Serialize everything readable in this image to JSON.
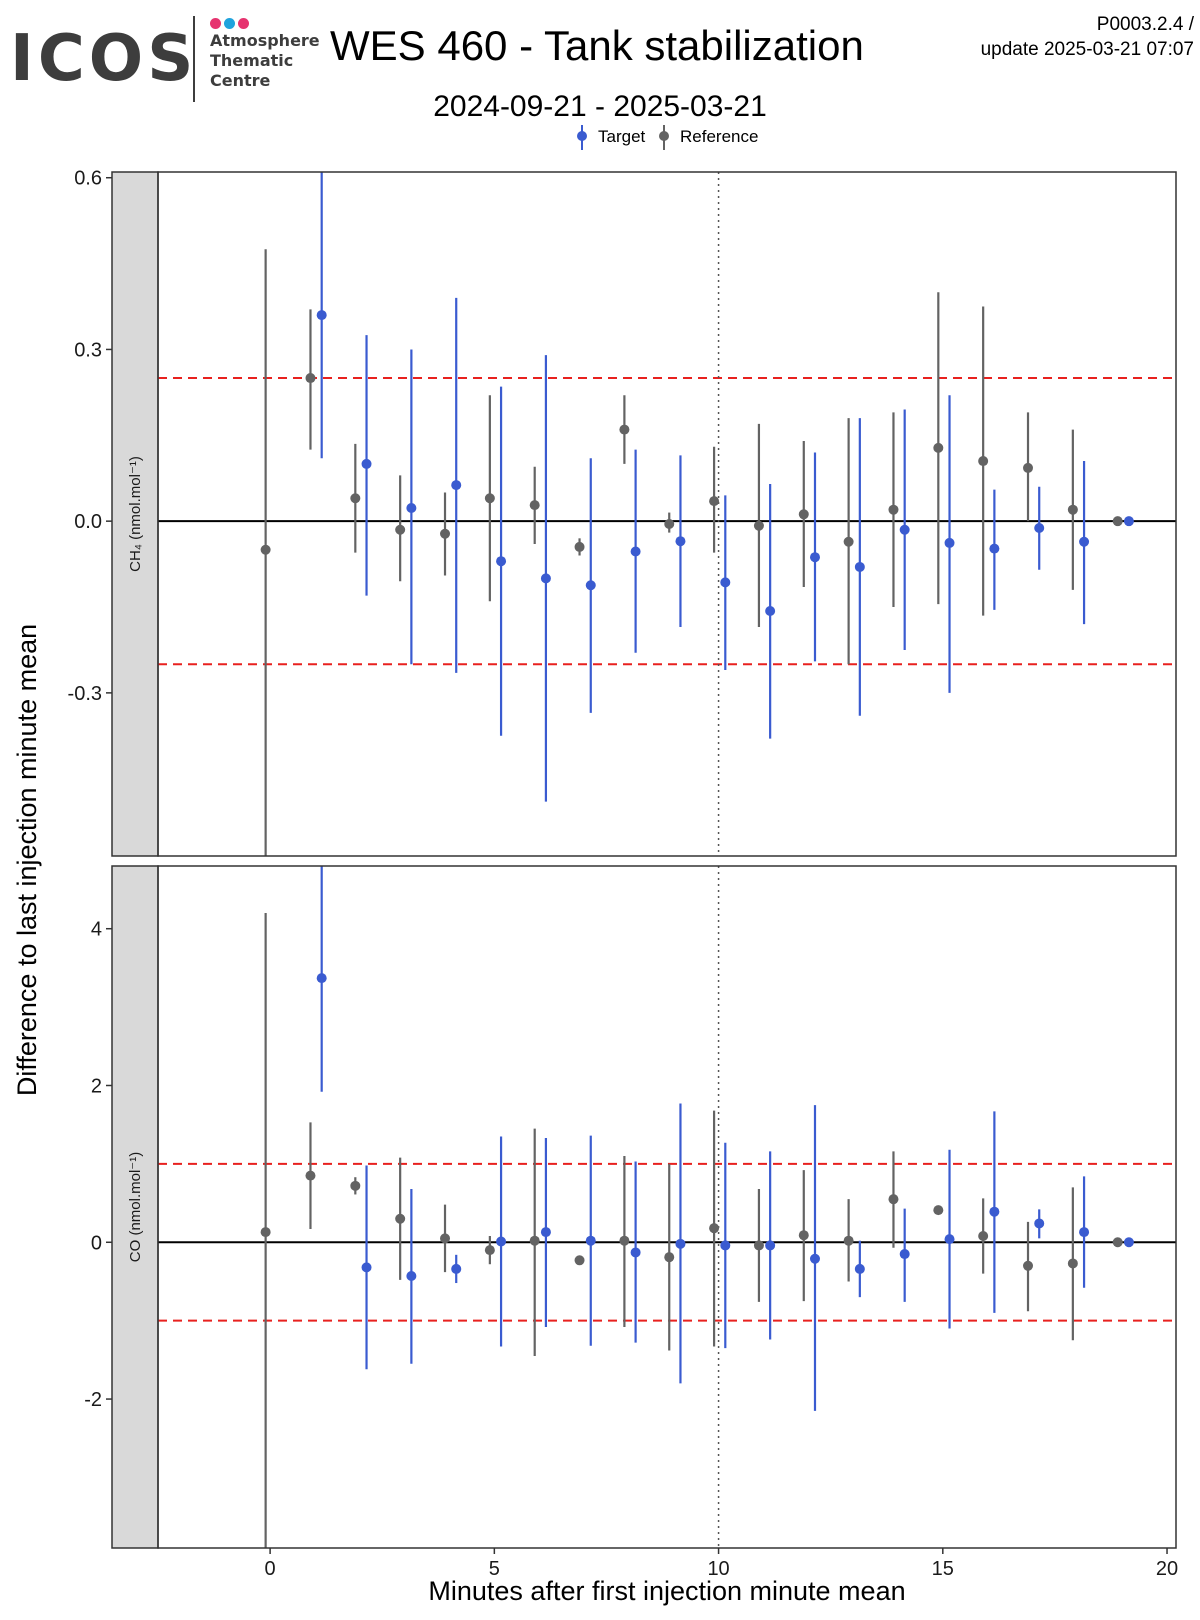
{
  "header": {
    "logo_name": "ICOS",
    "logo_subtitle": "Atmosphere\nThematic\nCentre",
    "logo_dot_colors": [
      "#e6336f",
      "#1fa3dd",
      "#e6336f"
    ],
    "title": "WES 460 - Tank stabilization",
    "date_range": "2024-09-21 - 2025-03-21",
    "code_line1": "P0003.2.4 /",
    "code_line2": "update  2025-03-21 07:07"
  },
  "colors": {
    "target": "#3a5bd0",
    "reference": "#636363",
    "limit_line": "#e8211f",
    "strip_bg": "#d9d9d9"
  },
  "chart_data": {
    "type": "scatter",
    "xlabel": "Minutes after first injection minute mean",
    "ylabel": "Difference to last injection minute mean",
    "xlim": [
      -2.5,
      20.2
    ],
    "x_ticks": [
      0,
      5,
      10,
      15,
      20
    ],
    "vline_x": 10,
    "legend": {
      "position": "top",
      "entries": [
        "Target",
        "Reference"
      ]
    },
    "panels": [
      {
        "strip_label": "CH₄ (nmol.mol⁻¹)",
        "ylim": [
          -0.585,
          0.61
        ],
        "y_ticks": [
          0.6,
          0.3,
          0.0,
          -0.3
        ],
        "y_tick_labels": [
          "0.6",
          "0.3",
          "0.0",
          "-0.3"
        ],
        "limit": 0.25,
        "series": [
          {
            "name": "Reference",
            "points": [
              {
                "x": -0.1,
                "y": -0.05,
                "lo": -0.585,
                "hi": 0.475
              },
              {
                "x": 0.9,
                "y": 0.25,
                "lo": 0.125,
                "hi": 0.37
              },
              {
                "x": 1.9,
                "y": 0.04,
                "lo": -0.055,
                "hi": 0.135
              },
              {
                "x": 2.9,
                "y": -0.015,
                "lo": -0.105,
                "hi": 0.08
              },
              {
                "x": 3.9,
                "y": -0.022,
                "lo": -0.095,
                "hi": 0.05
              },
              {
                "x": 4.9,
                "y": 0.04,
                "lo": -0.14,
                "hi": 0.22
              },
              {
                "x": 5.9,
                "y": 0.028,
                "lo": -0.04,
                "hi": 0.095
              },
              {
                "x": 6.9,
                "y": -0.045,
                "lo": -0.06,
                "hi": -0.03
              },
              {
                "x": 7.9,
                "y": 0.16,
                "lo": 0.1,
                "hi": 0.22
              },
              {
                "x": 8.9,
                "y": -0.005,
                "lo": -0.02,
                "hi": 0.015
              },
              {
                "x": 9.9,
                "y": 0.035,
                "lo": -0.055,
                "hi": 0.13
              },
              {
                "x": 10.9,
                "y": -0.008,
                "lo": -0.185,
                "hi": 0.17
              },
              {
                "x": 11.9,
                "y": 0.012,
                "lo": -0.115,
                "hi": 0.14
              },
              {
                "x": 12.9,
                "y": -0.036,
                "lo": -0.25,
                "hi": 0.18
              },
              {
                "x": 13.9,
                "y": 0.02,
                "lo": -0.15,
                "hi": 0.19
              },
              {
                "x": 14.9,
                "y": 0.128,
                "lo": -0.145,
                "hi": 0.4
              },
              {
                "x": 15.9,
                "y": 0.105,
                "lo": -0.165,
                "hi": 0.375
              },
              {
                "x": 16.9,
                "y": 0.093,
                "lo": 0.0,
                "hi": 0.19
              },
              {
                "x": 17.9,
                "y": 0.02,
                "lo": -0.12,
                "hi": 0.16
              },
              {
                "x": 18.9,
                "y": 0.0,
                "lo": 0.0,
                "hi": 0.0
              }
            ]
          },
          {
            "name": "Target",
            "points": [
              {
                "x": 1.15,
                "y": 0.36,
                "lo": 0.11,
                "hi": 0.61
              },
              {
                "x": 2.15,
                "y": 0.1,
                "lo": -0.13,
                "hi": 0.325
              },
              {
                "x": 3.15,
                "y": 0.023,
                "lo": -0.25,
                "hi": 0.3
              },
              {
                "x": 4.15,
                "y": 0.063,
                "lo": -0.265,
                "hi": 0.39
              },
              {
                "x": 5.15,
                "y": -0.07,
                "lo": -0.375,
                "hi": 0.235
              },
              {
                "x": 6.15,
                "y": -0.1,
                "lo": -0.49,
                "hi": 0.29
              },
              {
                "x": 7.15,
                "y": -0.112,
                "lo": -0.335,
                "hi": 0.11
              },
              {
                "x": 8.15,
                "y": -0.053,
                "lo": -0.23,
                "hi": 0.125
              },
              {
                "x": 9.15,
                "y": -0.035,
                "lo": -0.185,
                "hi": 0.115
              },
              {
                "x": 10.15,
                "y": -0.107,
                "lo": -0.26,
                "hi": 0.045
              },
              {
                "x": 11.15,
                "y": -0.157,
                "lo": -0.38,
                "hi": 0.065
              },
              {
                "x": 12.15,
                "y": -0.063,
                "lo": -0.245,
                "hi": 0.12
              },
              {
                "x": 13.15,
                "y": -0.08,
                "lo": -0.34,
                "hi": 0.18
              },
              {
                "x": 14.15,
                "y": -0.015,
                "lo": -0.225,
                "hi": 0.195
              },
              {
                "x": 15.15,
                "y": -0.038,
                "lo": -0.3,
                "hi": 0.22
              },
              {
                "x": 16.15,
                "y": -0.048,
                "lo": -0.155,
                "hi": 0.055
              },
              {
                "x": 17.15,
                "y": -0.012,
                "lo": -0.085,
                "hi": 0.06
              },
              {
                "x": 18.15,
                "y": -0.036,
                "lo": -0.18,
                "hi": 0.105
              },
              {
                "x": 19.15,
                "y": 0.0,
                "lo": 0.0,
                "hi": 0.0
              }
            ]
          }
        ]
      },
      {
        "strip_label": "CO (nmol.mol⁻¹)",
        "ylim": [
          -3.9,
          4.8
        ],
        "y_ticks": [
          4,
          2,
          0,
          -2
        ],
        "y_tick_labels": [
          "4",
          "2",
          "0",
          "-2"
        ],
        "limit": 1.0,
        "series": [
          {
            "name": "Reference",
            "points": [
              {
                "x": -0.1,
                "y": 0.13,
                "lo": -3.9,
                "hi": 4.2
              },
              {
                "x": 0.9,
                "y": 0.85,
                "lo": 0.17,
                "hi": 1.53
              },
              {
                "x": 1.9,
                "y": 0.72,
                "lo": 0.61,
                "hi": 0.83
              },
              {
                "x": 2.9,
                "y": 0.3,
                "lo": -0.48,
                "hi": 1.08
              },
              {
                "x": 3.9,
                "y": 0.05,
                "lo": -0.38,
                "hi": 0.48
              },
              {
                "x": 4.9,
                "y": -0.1,
                "lo": -0.28,
                "hi": 0.08
              },
              {
                "x": 5.9,
                "y": 0.02,
                "lo": -1.45,
                "hi": 1.45
              },
              {
                "x": 6.9,
                "y": -0.23,
                "lo": -0.23,
                "hi": -0.23
              },
              {
                "x": 7.9,
                "y": 0.02,
                "lo": -1.08,
                "hi": 1.1
              },
              {
                "x": 8.9,
                "y": -0.19,
                "lo": -1.38,
                "hi": 1.0
              },
              {
                "x": 9.9,
                "y": 0.18,
                "lo": -1.33,
                "hi": 1.68
              },
              {
                "x": 10.9,
                "y": -0.04,
                "lo": -0.76,
                "hi": 0.68
              },
              {
                "x": 11.9,
                "y": 0.09,
                "lo": -0.75,
                "hi": 0.92
              },
              {
                "x": 12.9,
                "y": 0.02,
                "lo": -0.5,
                "hi": 0.55
              },
              {
                "x": 13.9,
                "y": 0.55,
                "lo": -0.07,
                "hi": 1.16
              },
              {
                "x": 14.9,
                "y": 0.41,
                "lo": 0.41,
                "hi": 0.41
              },
              {
                "x": 15.9,
                "y": 0.08,
                "lo": -0.4,
                "hi": 0.56
              },
              {
                "x": 16.9,
                "y": -0.3,
                "lo": -0.88,
                "hi": 0.26
              },
              {
                "x": 17.9,
                "y": -0.27,
                "lo": -1.25,
                "hi": 0.7
              },
              {
                "x": 18.9,
                "y": 0.0,
                "lo": 0.0,
                "hi": 0.0
              }
            ]
          },
          {
            "name": "Target",
            "points": [
              {
                "x": 1.15,
                "y": 3.37,
                "lo": 1.92,
                "hi": 4.8
              },
              {
                "x": 2.15,
                "y": -0.32,
                "lo": -1.62,
                "hi": 0.98
              },
              {
                "x": 3.15,
                "y": -0.43,
                "lo": -1.55,
                "hi": 0.68
              },
              {
                "x": 4.15,
                "y": -0.34,
                "lo": -0.52,
                "hi": -0.16
              },
              {
                "x": 5.15,
                "y": 0.01,
                "lo": -1.33,
                "hi": 1.35
              },
              {
                "x": 6.15,
                "y": 0.13,
                "lo": -1.08,
                "hi": 1.33
              },
              {
                "x": 7.15,
                "y": 0.02,
                "lo": -1.32,
                "hi": 1.36
              },
              {
                "x": 8.15,
                "y": -0.13,
                "lo": -1.28,
                "hi": 1.03
              },
              {
                "x": 9.15,
                "y": -0.02,
                "lo": -1.8,
                "hi": 1.77
              },
              {
                "x": 10.15,
                "y": -0.04,
                "lo": -1.35,
                "hi": 1.27
              },
              {
                "x": 11.15,
                "y": -0.04,
                "lo": -1.24,
                "hi": 1.16
              },
              {
                "x": 12.15,
                "y": -0.21,
                "lo": -2.15,
                "hi": 1.75
              },
              {
                "x": 13.15,
                "y": -0.34,
                "lo": -0.7,
                "hi": 0.02
              },
              {
                "x": 14.15,
                "y": -0.15,
                "lo": -0.76,
                "hi": 0.43
              },
              {
                "x": 15.15,
                "y": 0.04,
                "lo": -1.1,
                "hi": 1.18
              },
              {
                "x": 16.15,
                "y": 0.39,
                "lo": -0.9,
                "hi": 1.67
              },
              {
                "x": 17.15,
                "y": 0.24,
                "lo": 0.05,
                "hi": 0.42
              },
              {
                "x": 18.15,
                "y": 0.13,
                "lo": -0.58,
                "hi": 0.84
              },
              {
                "x": 19.15,
                "y": 0.0,
                "lo": 0.0,
                "hi": 0.0
              }
            ]
          }
        ]
      }
    ]
  }
}
